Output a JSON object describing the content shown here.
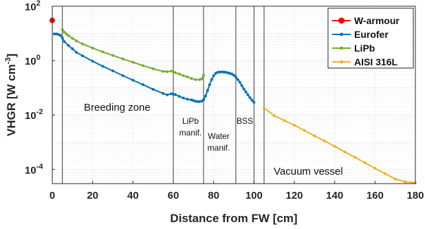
{
  "chart_data": {
    "type": "line",
    "title": "",
    "xlabel": "Distance from FW [cm]",
    "ylabel_main": "VHGR [W cm",
    "ylabel_exp": "-3",
    "ylabel_end": "]",
    "xlim": [
      0,
      180
    ],
    "ylim": [
      3e-05,
      100
    ],
    "yscale": "log",
    "grid": true,
    "legend_position": "top-right",
    "x_ticks": [
      "0",
      "20",
      "40",
      "60",
      "80",
      "100",
      "120",
      "140",
      "160",
      "180"
    ],
    "y_ticks": [
      {
        "base": "10",
        "exp": "2"
      },
      {
        "base": "10",
        "exp": "0"
      },
      {
        "base": "10",
        "exp": "-2"
      },
      {
        "base": "10",
        "exp": "-4"
      }
    ],
    "dividers_x": [
      5,
      60,
      75,
      91,
      100,
      105
    ],
    "annotations": [
      {
        "key": "breeding",
        "lines": [
          "Breeding zone"
        ]
      },
      {
        "key": "lipb_manif",
        "lines": [
          "LiPb",
          "manif."
        ]
      },
      {
        "key": "water_manif",
        "lines": [
          "Water",
          "manif."
        ]
      },
      {
        "key": "bss",
        "lines": [
          "BSS"
        ]
      },
      {
        "key": "vacuum",
        "lines": [
          "Vacuum vessel"
        ]
      }
    ],
    "series": [
      {
        "name": "W-armour",
        "color": "#ff0000",
        "marker_size": 4,
        "x": [
          0
        ],
        "y": [
          30
        ]
      },
      {
        "name": "Eurofer",
        "color": "#0072bd",
        "marker_size": 2,
        "x": [
          1,
          2,
          3,
          4,
          5,
          6,
          8,
          10,
          12,
          15,
          20,
          25,
          30,
          35,
          40,
          45,
          50,
          55,
          57,
          59,
          60,
          61,
          63,
          65,
          67,
          69,
          70,
          71,
          72,
          73,
          74,
          75,
          76,
          77,
          78,
          79,
          80,
          81,
          82,
          83,
          84,
          85,
          86,
          87,
          88,
          89,
          90,
          91,
          92,
          93,
          94,
          95,
          96,
          97,
          98,
          99,
          100
        ],
        "y": [
          9.5,
          9.5,
          9.2,
          8.5,
          6.8,
          5.0,
          3.6,
          2.7,
          2.0,
          1.5,
          0.95,
          0.62,
          0.42,
          0.28,
          0.19,
          0.13,
          0.088,
          0.062,
          0.055,
          0.06,
          0.058,
          0.056,
          0.048,
          0.042,
          0.038,
          0.036,
          0.034,
          0.032,
          0.031,
          0.031,
          0.032,
          0.036,
          0.05,
          0.08,
          0.13,
          0.2,
          0.28,
          0.34,
          0.37,
          0.38,
          0.385,
          0.38,
          0.37,
          0.355,
          0.34,
          0.32,
          0.29,
          0.25,
          0.2,
          0.16,
          0.12,
          0.09,
          0.07,
          0.055,
          0.043,
          0.035,
          0.029
        ]
      },
      {
        "name": "LiPb",
        "color": "#77ac30",
        "marker_size": 2,
        "x": [
          5,
          6,
          7,
          8,
          10,
          12,
          15,
          20,
          25,
          30,
          35,
          40,
          45,
          50,
          55,
          57,
          59,
          60,
          61,
          63,
          65,
          67,
          69,
          71,
          73,
          74,
          75
        ],
        "y": [
          14,
          11,
          9.5,
          8.3,
          6.6,
          5.3,
          4.1,
          2.9,
          2.1,
          1.55,
          1.15,
          0.87,
          0.65,
          0.5,
          0.4,
          0.39,
          0.41,
          0.39,
          0.36,
          0.32,
          0.28,
          0.25,
          0.22,
          0.2,
          0.2,
          0.21,
          0.29
        ]
      },
      {
        "name": "AISI 316L",
        "color": "#edb120",
        "marker_size": 2,
        "x": [
          105,
          110,
          115,
          120,
          125,
          130,
          135,
          140,
          145,
          150,
          155,
          160,
          165,
          170,
          175,
          180
        ],
        "y": [
          0.018,
          0.0095,
          0.0063,
          0.0042,
          0.0027,
          0.0017,
          0.0011,
          0.0007,
          0.00044,
          0.00028,
          0.000175,
          0.00011,
          7e-05,
          4.4e-05,
          3.5e-05,
          3.2e-05
        ]
      }
    ]
  }
}
